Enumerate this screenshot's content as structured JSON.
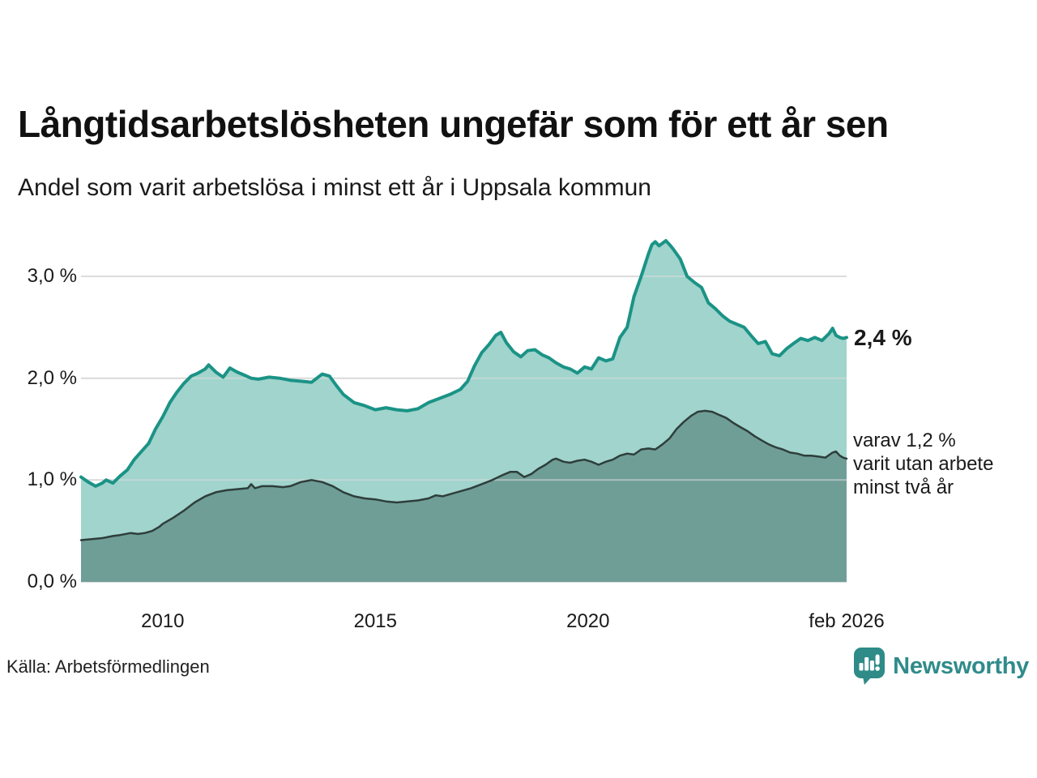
{
  "header": {
    "title": "Långtidsarbetslösheten ungefär som för ett år sen",
    "subtitle": "Andel som varit arbetslösa i minst ett år i Uppsala kommun"
  },
  "annotations": {
    "latest_total": "2,4 %",
    "secondary_lines": [
      "varav 1,2 %",
      "varit utan arbete",
      "minst två år"
    ]
  },
  "footer": {
    "source": "Källa: Arbetsförmedlingen",
    "brand": "Newsworthy"
  },
  "colors": {
    "teal_line": "#1b9386",
    "light_fill": "#a0d4cc",
    "dark_fill": "#6f9e97",
    "dark_line": "#2e3e3b",
    "gridline": "#dcdcdc",
    "brand_teal": "#2f8b8a"
  },
  "chart_data": {
    "type": "area",
    "unit": "%",
    "x_domain": [
      2008.08,
      2026.08
    ],
    "ylim": [
      0,
      3.5
    ],
    "grid": true,
    "y_ticks": [
      {
        "label": "3,0 %",
        "value": 3
      },
      {
        "label": "2,0 %",
        "value": 2
      },
      {
        "label": "1,0 %",
        "value": 1
      },
      {
        "label": "0,0 %",
        "value": 0
      }
    ],
    "x_ticks": [
      {
        "label": "2010",
        "value": 2010
      },
      {
        "label": "2015",
        "value": 2015
      },
      {
        "label": "2020",
        "value": 2020
      },
      {
        "label": "feb 2026",
        "value": 2026.08
      }
    ],
    "gridline_color": "#dcdcdc",
    "series": [
      {
        "name": "Arbetslösa minst ett år",
        "color_fill": "#a0d4cc",
        "color_line": "#1b9386",
        "line_width": 4,
        "x": [
          2008.08,
          2008.25,
          2008.42,
          2008.58,
          2008.67,
          2008.83,
          2009.0,
          2009.17,
          2009.33,
          2009.5,
          2009.67,
          2009.83,
          2010.0,
          2010.17,
          2010.33,
          2010.5,
          2010.67,
          2010.83,
          2011.0,
          2011.08,
          2011.25,
          2011.42,
          2011.58,
          2011.75,
          2011.92,
          2012.08,
          2012.25,
          2012.5,
          2012.75,
          2013.0,
          2013.25,
          2013.5,
          2013.75,
          2013.92,
          2014.08,
          2014.25,
          2014.5,
          2014.75,
          2015.0,
          2015.25,
          2015.5,
          2015.75,
          2016.0,
          2016.25,
          2016.5,
          2016.75,
          2017.0,
          2017.17,
          2017.33,
          2017.5,
          2017.67,
          2017.83,
          2017.95,
          2018.08,
          2018.25,
          2018.42,
          2018.58,
          2018.75,
          2018.92,
          2019.08,
          2019.25,
          2019.42,
          2019.58,
          2019.75,
          2019.92,
          2020.08,
          2020.25,
          2020.42,
          2020.58,
          2020.75,
          2020.92,
          2021.08,
          2021.25,
          2021.42,
          2021.5,
          2021.58,
          2021.67,
          2021.83,
          2021.92,
          2022.0,
          2022.17,
          2022.33,
          2022.5,
          2022.67,
          2022.83,
          2023.0,
          2023.17,
          2023.33,
          2023.5,
          2023.67,
          2023.83,
          2024.0,
          2024.17,
          2024.33,
          2024.5,
          2024.67,
          2024.83,
          2025.0,
          2025.17,
          2025.33,
          2025.5,
          2025.67,
          2025.75,
          2025.83,
          2025.92,
          2026.0,
          2026.08
        ],
        "values": [
          1.03,
          0.98,
          0.94,
          0.97,
          1.0,
          0.97,
          1.04,
          1.1,
          1.2,
          1.28,
          1.36,
          1.5,
          1.62,
          1.76,
          1.86,
          1.95,
          2.02,
          2.05,
          2.09,
          2.13,
          2.06,
          2.01,
          2.1,
          2.06,
          2.03,
          2.0,
          1.99,
          2.01,
          2.0,
          1.98,
          1.97,
          1.96,
          2.04,
          2.02,
          1.93,
          1.84,
          1.76,
          1.73,
          1.69,
          1.71,
          1.69,
          1.68,
          1.7,
          1.76,
          1.8,
          1.84,
          1.89,
          1.97,
          2.12,
          2.25,
          2.33,
          2.42,
          2.45,
          2.35,
          2.26,
          2.21,
          2.27,
          2.28,
          2.23,
          2.2,
          2.15,
          2.11,
          2.09,
          2.05,
          2.11,
          2.09,
          2.2,
          2.17,
          2.19,
          2.4,
          2.5,
          2.8,
          3.0,
          3.22,
          3.31,
          3.34,
          3.3,
          3.35,
          3.31,
          3.27,
          3.17,
          3.0,
          2.94,
          2.89,
          2.74,
          2.68,
          2.61,
          2.56,
          2.53,
          2.5,
          2.42,
          2.34,
          2.36,
          2.24,
          2.22,
          2.29,
          2.34,
          2.39,
          2.37,
          2.4,
          2.37,
          2.44,
          2.49,
          2.42,
          2.4,
          2.39,
          2.4
        ]
      },
      {
        "name": "varav utan arbete minst två år",
        "color_fill": "#6f9e97",
        "color_line": "#2e3e3b",
        "line_width": 2.5,
        "x": [
          2008.08,
          2008.33,
          2008.58,
          2008.83,
          2009.0,
          2009.25,
          2009.42,
          2009.58,
          2009.75,
          2009.92,
          2010.0,
          2010.25,
          2010.5,
          2010.75,
          2011.0,
          2011.25,
          2011.5,
          2011.75,
          2012.0,
          2012.08,
          2012.17,
          2012.33,
          2012.58,
          2012.83,
          2013.0,
          2013.25,
          2013.5,
          2013.75,
          2014.0,
          2014.25,
          2014.5,
          2014.75,
          2015.0,
          2015.25,
          2015.5,
          2015.75,
          2016.0,
          2016.25,
          2016.42,
          2016.58,
          2016.83,
          2017.0,
          2017.25,
          2017.5,
          2017.75,
          2018.0,
          2018.17,
          2018.33,
          2018.5,
          2018.67,
          2018.83,
          2019.0,
          2019.17,
          2019.25,
          2019.42,
          2019.58,
          2019.75,
          2019.92,
          2020.08,
          2020.25,
          2020.42,
          2020.58,
          2020.75,
          2020.92,
          2021.08,
          2021.25,
          2021.42,
          2021.58,
          2021.75,
          2021.92,
          2022.08,
          2022.25,
          2022.42,
          2022.58,
          2022.75,
          2022.92,
          2023.08,
          2023.25,
          2023.42,
          2023.58,
          2023.75,
          2023.92,
          2024.08,
          2024.25,
          2024.42,
          2024.58,
          2024.75,
          2024.92,
          2025.08,
          2025.25,
          2025.42,
          2025.58,
          2025.75,
          2025.83,
          2025.92,
          2026.0,
          2026.08
        ],
        "values": [
          0.41,
          0.42,
          0.43,
          0.45,
          0.46,
          0.48,
          0.47,
          0.48,
          0.5,
          0.54,
          0.57,
          0.63,
          0.7,
          0.78,
          0.84,
          0.88,
          0.9,
          0.91,
          0.92,
          0.96,
          0.92,
          0.94,
          0.94,
          0.93,
          0.94,
          0.98,
          1.0,
          0.98,
          0.94,
          0.88,
          0.84,
          0.82,
          0.81,
          0.79,
          0.78,
          0.79,
          0.8,
          0.82,
          0.85,
          0.84,
          0.87,
          0.89,
          0.92,
          0.96,
          1.0,
          1.05,
          1.08,
          1.08,
          1.03,
          1.06,
          1.11,
          1.15,
          1.2,
          1.21,
          1.18,
          1.17,
          1.19,
          1.2,
          1.18,
          1.15,
          1.18,
          1.2,
          1.24,
          1.26,
          1.25,
          1.3,
          1.31,
          1.3,
          1.35,
          1.41,
          1.5,
          1.57,
          1.63,
          1.67,
          1.68,
          1.67,
          1.64,
          1.61,
          1.56,
          1.52,
          1.48,
          1.43,
          1.39,
          1.35,
          1.32,
          1.3,
          1.27,
          1.26,
          1.24,
          1.24,
          1.23,
          1.22,
          1.27,
          1.28,
          1.24,
          1.22,
          1.21
        ]
      }
    ]
  }
}
